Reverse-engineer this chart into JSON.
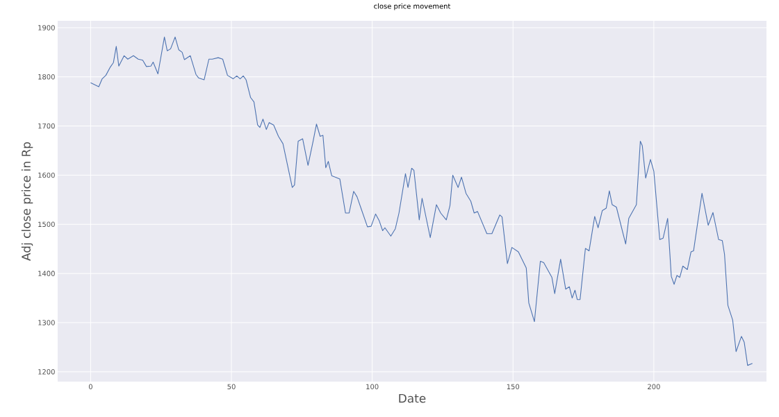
{
  "chart_data": {
    "type": "line",
    "title": "close price movement",
    "xlabel": "Date",
    "ylabel": "Adj close price in Rp",
    "x": [
      0,
      2.9,
      4.1,
      5.4,
      7,
      8.1,
      9.1,
      10,
      11.9,
      13.2,
      15.2,
      16.9,
      18.5,
      19.8,
      21.4,
      22.2,
      23.9,
      26.2,
      27.2,
      28.4,
      30,
      31.3,
      32.5,
      33.3,
      35.4,
      37.4,
      38.3,
      40.3,
      42,
      43.2,
      45.3,
      46.9,
      48.6,
      50.6,
      51.9,
      53.1,
      54.2,
      55.2,
      56.8,
      58,
      59.3,
      60.1,
      61.2,
      62.4,
      63.4,
      65,
      66.7,
      68.3,
      71.6,
      72.4,
      73.7,
      75.3,
      77.2,
      79,
      80.2,
      81.5,
      82.5,
      83.5,
      84.4,
      85.6,
      88.5,
      90.5,
      91.8,
      93.4,
      94.6,
      96.3,
      98.3,
      99.6,
      101.2,
      102.5,
      103.7,
      104.5,
      106.6,
      108.2,
      109.5,
      111.8,
      112.7,
      114,
      114.8,
      116.7,
      117.7,
      120.6,
      122.8,
      124.3,
      126.3,
      127.6,
      128.6,
      130.5,
      131.7,
      133.3,
      135,
      136.2,
      137.4,
      140.7,
      142.5,
      145.3,
      146.1,
      148,
      149.6,
      151.9,
      154.7,
      155.6,
      157.6,
      159.7,
      160.9,
      163.8,
      164.8,
      166.9,
      168.7,
      170,
      171,
      172,
      172.8,
      173.8,
      175.7,
      177,
      179,
      180.2,
      181.7,
      183.1,
      184.2,
      185.2,
      186.7,
      190,
      191.1,
      193.8,
      195.2,
      195.9,
      197.1,
      198.8,
      200,
      202.1,
      203.3,
      204.9,
      206.2,
      207.2,
      208.2,
      209.2,
      210.3,
      211.9,
      213.2,
      214.1,
      217.1,
      219.3,
      221,
      223,
      224.3,
      225.1,
      226.3,
      228,
      229.2,
      231.1,
      232.1,
      233.3,
      235
    ],
    "series": [
      {
        "color": "#4c72b0",
        "values": [
          1788,
          1780,
          1796,
          1803,
          1820,
          1829,
          1862,
          1822,
          1843,
          1836,
          1843,
          1836,
          1834,
          1821,
          1822,
          1830,
          1806,
          1881,
          1853,
          1857,
          1881,
          1855,
          1850,
          1835,
          1843,
          1805,
          1798,
          1794,
          1836,
          1836,
          1839,
          1836,
          1803,
          1796,
          1802,
          1796,
          1802,
          1794,
          1758,
          1749,
          1702,
          1697,
          1714,
          1693,
          1707,
          1702,
          1679,
          1664,
          1575,
          1580,
          1669,
          1674,
          1620,
          1669,
          1704,
          1679,
          1681,
          1615,
          1628,
          1599,
          1592,
          1523,
          1523,
          1567,
          1556,
          1528,
          1495,
          1496,
          1521,
          1507,
          1487,
          1493,
          1476,
          1491,
          1523,
          1603,
          1575,
          1614,
          1610,
          1509,
          1553,
          1473,
          1540,
          1523,
          1509,
          1538,
          1600,
          1575,
          1596,
          1563,
          1547,
          1523,
          1526,
          1481,
          1481,
          1519,
          1515,
          1420,
          1453,
          1444,
          1411,
          1340,
          1302,
          1425,
          1422,
          1392,
          1359,
          1429,
          1368,
          1373,
          1350,
          1366,
          1347,
          1347,
          1451,
          1446,
          1516,
          1493,
          1528,
          1533,
          1568,
          1540,
          1535,
          1460,
          1512,
          1540,
          1669,
          1660,
          1594,
          1632,
          1608,
          1469,
          1472,
          1512,
          1394,
          1378,
          1396,
          1392,
          1415,
          1408,
          1444,
          1446,
          1563,
          1498,
          1524,
          1469,
          1467,
          1439,
          1335,
          1305,
          1241,
          1272,
          1260,
          1213,
          1217
        ]
      }
    ],
    "xlim": [
      -11.7,
      240
    ],
    "ylim": [
      1180,
      1914
    ],
    "xticks": [
      0,
      50,
      100,
      150,
      200
    ],
    "yticks": [
      1200,
      1300,
      1400,
      1500,
      1600,
      1700,
      1800,
      1900
    ],
    "grid": true
  }
}
